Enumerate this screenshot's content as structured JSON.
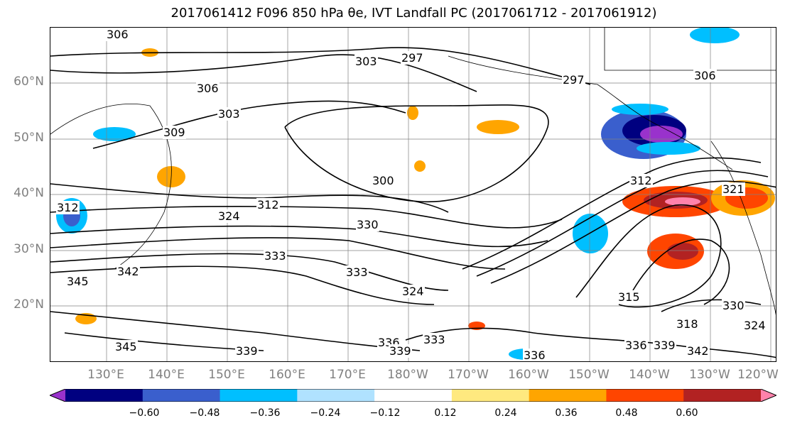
{
  "title": "2017061412 F096 850 hPa θe, IVT Landfall PC (2017061712 - 2017061912)",
  "map": {
    "lat_labels": [
      "60°N",
      "50°N",
      "40°N",
      "30°N",
      "20°N"
    ],
    "lon_labels": [
      "130°E",
      "140°E",
      "150°E",
      "160°E",
      "170°E",
      "180°W",
      "170°W",
      "160°W",
      "150°W",
      "140°W",
      "130°W",
      "120°W"
    ],
    "contour_labels": [
      "306",
      "297",
      "303",
      "297",
      "306",
      "306",
      "303",
      "309",
      "300",
      "312",
      "312",
      "324",
      "330",
      "333",
      "333",
      "342",
      "345",
      "324",
      "315",
      "312",
      "318",
      "321",
      "330",
      "324",
      "336",
      "333",
      "339",
      "339",
      "345",
      "336",
      "339",
      "342",
      "336"
    ],
    "colors": {
      "land_outline": "#000000",
      "grid": "#808080",
      "contour": "#000000"
    }
  },
  "colorbar": {
    "colors": [
      "#9932CC",
      "#000080",
      "#3A5FCD",
      "#00BFFF",
      "#B0E2FF",
      "#FFFFFF",
      "#FFE97F",
      "#FFA500",
      "#FF4500",
      "#B22222",
      "#FF82AB"
    ],
    "tick_labels": [
      "−0.60",
      "−0.48",
      "−0.36",
      "−0.24",
      "−0.12",
      "0.12",
      "0.24",
      "0.36",
      "0.48",
      "0.60"
    ]
  }
}
